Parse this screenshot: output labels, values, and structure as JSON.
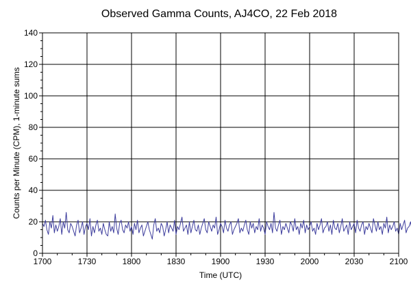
{
  "chart_data": {
    "type": "line",
    "title": "Observed Gamma Counts, AJ4CO, 22 Feb 2018",
    "xlabel": "Time (UTC)",
    "ylabel": "Counts per Minute (CPM), 1-minute sums",
    "xlim": [
      "17:00",
      "21:00"
    ],
    "ylim": [
      0,
      140
    ],
    "x_ticks": [
      "1700",
      "1730",
      "1800",
      "1830",
      "1900",
      "1930",
      "2000",
      "2030",
      "2100"
    ],
    "y_ticks": [
      0,
      20,
      40,
      60,
      80,
      100,
      120,
      140
    ],
    "grid": true,
    "series": [
      {
        "color": "#3c3c9c",
        "x_start": "17:00",
        "x_step_minutes": 1,
        "values": [
          19,
          17,
          21,
          15,
          12,
          20,
          16,
          24,
          13,
          18,
          14,
          17,
          22,
          12,
          20,
          16,
          26,
          15,
          13,
          19,
          17,
          14,
          11,
          18,
          21,
          13,
          16,
          20,
          12,
          17,
          19,
          15,
          22,
          11,
          17,
          13,
          18,
          21,
          14,
          16,
          12,
          19,
          15,
          12,
          11,
          20,
          14,
          17,
          13,
          25,
          16,
          12,
          19,
          21,
          15,
          13,
          18,
          16,
          20,
          14,
          17,
          12,
          19,
          15,
          21,
          13,
          16,
          18,
          11,
          14,
          17,
          20,
          15,
          12,
          9,
          18,
          22,
          14,
          16,
          13,
          19,
          17,
          11,
          15,
          20,
          13,
          18,
          16,
          14,
          21,
          12,
          17,
          15,
          19,
          23,
          14,
          16,
          18,
          12,
          20,
          13,
          17,
          21,
          15,
          14,
          18,
          12,
          16,
          19,
          22,
          15,
          13,
          20,
          17,
          14,
          18,
          16,
          23,
          12,
          15,
          19,
          17,
          13,
          21,
          16,
          14,
          18,
          20,
          12,
          15,
          17,
          19,
          22,
          13,
          16,
          14,
          18,
          21,
          15,
          12,
          20,
          16,
          19,
          13,
          17,
          15,
          22,
          14,
          18,
          16,
          12,
          20,
          17,
          15,
          19,
          13,
          26,
          16,
          14,
          18,
          21,
          12,
          17,
          15,
          19,
          16,
          13,
          20,
          18,
          14,
          22,
          15,
          17,
          12,
          19,
          16,
          21,
          13,
          18,
          15,
          17,
          20,
          14,
          16,
          12,
          19,
          15,
          18,
          22,
          13,
          16,
          17,
          20,
          14,
          18,
          12,
          21,
          16,
          15,
          19,
          13,
          17,
          22,
          14,
          16,
          18,
          12,
          20,
          15,
          17,
          19,
          13,
          21,
          16,
          14,
          18,
          20,
          12,
          17,
          15,
          19,
          16,
          13,
          22,
          18,
          14,
          20,
          15,
          17,
          12,
          19,
          16,
          23,
          13,
          18,
          15,
          17,
          20,
          14,
          16,
          12,
          19,
          15,
          18,
          21,
          13,
          16,
          17,
          20,
          14,
          18,
          12,
          21,
          16,
          15,
          19,
          13,
          17,
          22,
          14,
          16,
          18,
          12,
          20,
          15,
          17,
          19,
          13,
          21,
          16
        ]
      }
    ]
  }
}
